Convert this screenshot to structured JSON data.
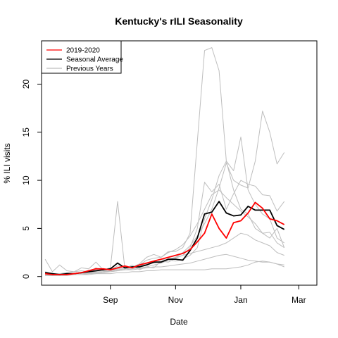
{
  "chart_data": {
    "type": "line",
    "title": "Kentucky's rILI Seasonality",
    "xlabel": "Date",
    "ylabel": "% ILI visits",
    "x_ticks": [
      {
        "label": "Sep",
        "value": 9.0
      },
      {
        "label": "Nov",
        "value": 18.0
      },
      {
        "label": "Jan",
        "value": 27.0
      },
      {
        "label": "Mar",
        "value": 35.0
      }
    ],
    "y_ticks": [
      0,
      5,
      10,
      15,
      20
    ],
    "xlim": [
      -0.5,
      37.5
    ],
    "ylim": [
      -0.9,
      24.5
    ],
    "grid": false,
    "legend": {
      "placement": "top-left",
      "entries": [
        {
          "label": "2019-2020",
          "color": "#ff0000"
        },
        {
          "label": "Seasonal Average",
          "color": "#000000"
        },
        {
          "label": "Previous Years",
          "color": "#bebebe"
        }
      ]
    },
    "x": [
      0,
      1,
      2,
      3,
      4,
      5,
      6,
      7,
      8,
      9,
      10,
      11,
      12,
      13,
      14,
      15,
      16,
      17,
      18,
      19,
      20,
      21,
      22,
      23,
      24,
      25,
      26,
      27,
      28,
      29,
      30,
      31,
      32,
      33,
      34,
      35,
      36
    ],
    "series": [
      {
        "name": "2019-2020",
        "color": "#ff0000",
        "width": 1.8,
        "values": [
          0.3,
          0.2,
          0.2,
          0.2,
          0.3,
          0.4,
          0.6,
          0.8,
          0.8,
          0.7,
          0.9,
          1.1,
          0.9,
          1.2,
          1.4,
          1.6,
          1.8,
          2.0,
          2.2,
          2.4,
          2.8,
          3.6,
          4.5,
          6.5,
          5.0,
          4.0,
          5.6,
          5.8,
          6.6,
          7.7,
          7.1,
          6.0,
          5.8,
          5.4,
          null,
          null,
          null
        ]
      },
      {
        "name": "Seasonal Average",
        "color": "#000000",
        "width": 1.8,
        "values": [
          0.4,
          0.3,
          0.2,
          0.3,
          0.3,
          0.4,
          0.5,
          0.6,
          0.7,
          0.8,
          1.4,
          0.9,
          1.0,
          1.0,
          1.2,
          1.5,
          1.5,
          1.8,
          1.8,
          1.7,
          2.7,
          4.0,
          6.5,
          6.7,
          7.8,
          6.6,
          6.3,
          6.4,
          7.3,
          6.9,
          6.9,
          6.9,
          5.3,
          4.9,
          null,
          null,
          null
        ]
      },
      {
        "name": "Previous Years",
        "color": "#bebebe",
        "width": 1,
        "values": [
          1.8,
          0.5,
          1.2,
          0.6,
          0.5,
          0.9,
          0.8,
          1.5,
          0.7,
          0.9,
          7.8,
          0.8,
          1.2,
          0.7,
          1.0,
          0.9,
          1.6,
          1.5,
          1.9,
          2.2,
          3.0,
          5.0,
          9.8,
          8.8,
          9.6,
          7.0,
          8.6,
          10.0,
          9.6,
          9.4,
          8.5,
          8.4,
          6.8,
          7.8,
          null,
          null,
          null
        ]
      },
      {
        "name": "Previous Years",
        "color": "#bebebe",
        "width": 1,
        "values": [
          0.5,
          0.3,
          0.3,
          0.4,
          0.5,
          0.6,
          0.5,
          0.9,
          0.6,
          0.7,
          1.1,
          1.0,
          1.0,
          1.3,
          2.0,
          2.3,
          2.0,
          2.6,
          2.6,
          3.0,
          4.5,
          14.0,
          23.5,
          23.8,
          21.4,
          12.0,
          9.0,
          7.0,
          6.5,
          5.0,
          4.5,
          4.6,
          3.5,
          3.0,
          null,
          null,
          null
        ]
      },
      {
        "name": "Previous Years",
        "color": "#bebebe",
        "width": 1,
        "values": [
          0.2,
          0.2,
          0.1,
          0.2,
          0.3,
          0.3,
          0.4,
          0.5,
          0.5,
          0.6,
          0.7,
          0.8,
          1.0,
          1.2,
          1.7,
          1.9,
          2.0,
          2.5,
          2.8,
          3.3,
          4.2,
          5.5,
          7.0,
          8.5,
          9.0,
          8.2,
          7.5,
          6.8,
          6.2,
          5.5,
          4.5,
          4.0,
          5.0,
          3.0,
          null,
          null,
          null
        ]
      },
      {
        "name": "Previous Years",
        "color": "#bebebe",
        "width": 1,
        "values": [
          0.1,
          0.1,
          0.2,
          0.2,
          0.3,
          0.3,
          0.3,
          0.4,
          0.5,
          0.5,
          0.6,
          0.7,
          0.8,
          0.9,
          1.0,
          1.2,
          1.4,
          1.7,
          2.0,
          2.5,
          3.2,
          4.2,
          5.5,
          7.0,
          9.2,
          11.8,
          10.0,
          9.5,
          9.2,
          12.0,
          17.2,
          15.0,
          11.7,
          12.9,
          null,
          null,
          null
        ]
      },
      {
        "name": "Previous Years",
        "color": "#bebebe",
        "width": 1,
        "values": [
          0.3,
          0.2,
          0.2,
          0.3,
          0.3,
          0.4,
          0.4,
          0.5,
          0.5,
          0.6,
          0.8,
          0.9,
          1.0,
          1.2,
          1.4,
          1.6,
          1.8,
          1.7,
          1.6,
          1.8,
          2.2,
          3.0,
          6.0,
          8.0,
          10.5,
          12.0,
          11.0,
          14.5,
          9.0,
          7.5,
          6.5,
          6.0,
          4.0,
          3.5,
          null,
          null,
          null
        ]
      },
      {
        "name": "Previous Years",
        "color": "#bebebe",
        "width": 1,
        "values": [
          0.2,
          0.2,
          0.3,
          0.3,
          0.3,
          0.4,
          0.4,
          0.4,
          0.5,
          0.6,
          0.7,
          0.8,
          0.9,
          1.1,
          1.3,
          1.4,
          1.6,
          1.8,
          2.0,
          2.2,
          2.4,
          2.6,
          2.8,
          3.0,
          3.2,
          3.5,
          4.0,
          4.5,
          4.3,
          3.8,
          3.5,
          3.2,
          2.5,
          2.2,
          null,
          null,
          null
        ]
      },
      {
        "name": "Previous Years",
        "color": "#bebebe",
        "width": 1,
        "values": [
          0.1,
          0.1,
          0.1,
          0.2,
          0.2,
          0.2,
          0.3,
          0.3,
          0.4,
          0.5,
          0.6,
          0.7,
          0.7,
          0.8,
          0.9,
          1.0,
          1.0,
          1.1,
          1.2,
          1.3,
          1.4,
          1.6,
          1.8,
          2.0,
          2.2,
          2.3,
          2.1,
          1.9,
          1.7,
          1.6,
          1.5,
          1.5,
          1.3,
          1.2,
          null,
          null,
          null
        ]
      },
      {
        "name": "Previous Years",
        "color": "#bebebe",
        "width": 1,
        "values": [
          0.1,
          0.1,
          0.1,
          0.1,
          0.2,
          0.2,
          0.2,
          0.3,
          0.3,
          0.3,
          0.4,
          0.4,
          0.5,
          0.5,
          0.6,
          0.6,
          0.7,
          0.7,
          0.7,
          0.7,
          0.7,
          0.7,
          0.7,
          0.8,
          0.8,
          0.8,
          0.9,
          1.0,
          1.2,
          1.5,
          1.6,
          1.5,
          1.3,
          1.0,
          null,
          null,
          null
        ]
      }
    ]
  }
}
